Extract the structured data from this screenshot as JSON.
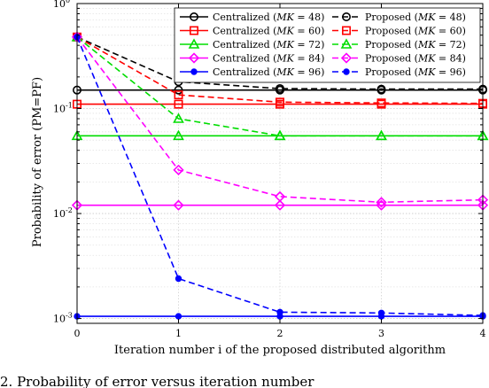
{
  "chart_data": {
    "type": "line",
    "xlabel": "Iteration number i of the proposed distributed algorithm",
    "ylabel": "Probability of error (PM=PF)",
    "x": [
      0,
      1,
      2,
      3,
      4
    ],
    "xlim": [
      0,
      4
    ],
    "ylim": [
      0.0009,
      1
    ],
    "yscale": "log",
    "grid": true,
    "legend_position": "top-right",
    "x_ticks": [
      "0",
      "1",
      "2",
      "3",
      "4"
    ],
    "y_ticks": [
      {
        "base": "10",
        "exp": "0",
        "value": 1
      },
      {
        "base": "10",
        "exp": "-1",
        "value": 0.1
      },
      {
        "base": "10",
        "exp": "-2",
        "value": 0.01
      },
      {
        "base": "10",
        "exp": "-3",
        "value": 0.001
      }
    ],
    "caption": "2.  Probability of error versus iteration number",
    "series": [
      {
        "name": "Centralized (MK = 48)",
        "legend_pre": "Centralized (",
        "legend_var": "MK",
        "legend_post": " = 48)",
        "color": "#000000",
        "marker": "circle",
        "dashed": false,
        "values": [
          0.15,
          0.15,
          0.15,
          0.15,
          0.15
        ]
      },
      {
        "name": "Centralized (MK = 60)",
        "legend_pre": "Centralized (",
        "legend_var": "MK",
        "legend_post": " = 60)",
        "color": "#ff0000",
        "marker": "square",
        "dashed": false,
        "values": [
          0.11,
          0.11,
          0.11,
          0.11,
          0.11
        ]
      },
      {
        "name": "Centralized (MK = 72)",
        "legend_pre": "Centralized (",
        "legend_var": "MK",
        "legend_post": " = 72)",
        "color": "#00dd00",
        "marker": "triangle",
        "dashed": false,
        "values": [
          0.055,
          0.055,
          0.055,
          0.055,
          0.055
        ]
      },
      {
        "name": "Centralized (MK = 84)",
        "legend_pre": "Centralized (",
        "legend_var": "MK",
        "legend_post": " = 84)",
        "color": "#ff00ff",
        "marker": "diamond",
        "dashed": false,
        "values": [
          0.012,
          0.012,
          0.012,
          0.012,
          0.012
        ]
      },
      {
        "name": "Centralized (MK = 96)",
        "legend_pre": "Centralized (",
        "legend_var": "MK",
        "legend_post": " = 96)",
        "color": "#0000ff",
        "marker": "dot",
        "dashed": false,
        "values": [
          0.00105,
          0.00105,
          0.00105,
          0.00105,
          0.00105
        ]
      },
      {
        "name": "Proposed (MK = 48)",
        "legend_pre": "Proposed (",
        "legend_var": "MK",
        "legend_post": " = 48)",
        "color": "#000000",
        "marker": "circle",
        "dashed": true,
        "values": [
          0.48,
          0.18,
          0.155,
          0.153,
          0.153
        ]
      },
      {
        "name": "Proposed (MK = 60)",
        "legend_pre": "Proposed (",
        "legend_var": "MK",
        "legend_post": " = 60)",
        "color": "#ff0000",
        "marker": "square",
        "dashed": true,
        "values": [
          0.48,
          0.135,
          0.115,
          0.113,
          0.112
        ]
      },
      {
        "name": "Proposed (MK = 72)",
        "legend_pre": "Proposed (",
        "legend_var": "MK",
        "legend_post": " = 72)",
        "color": "#00dd00",
        "marker": "triangle",
        "dashed": true,
        "values": [
          0.48,
          0.08,
          0.055,
          0.055,
          0.055
        ]
      },
      {
        "name": "Proposed (MK = 84)",
        "legend_pre": "Proposed (",
        "legend_var": "MK",
        "legend_post": " = 84)",
        "color": "#ff00ff",
        "marker": "diamond",
        "dashed": true,
        "values": [
          0.48,
          0.026,
          0.0145,
          0.0128,
          0.0135
        ]
      },
      {
        "name": "Proposed (MK = 96)",
        "legend_pre": "Proposed (",
        "legend_var": "MK",
        "legend_post": " = 96)",
        "color": "#0000ff",
        "marker": "dot",
        "dashed": true,
        "values": [
          0.48,
          0.0024,
          0.00115,
          0.00113,
          0.00107
        ]
      }
    ]
  }
}
